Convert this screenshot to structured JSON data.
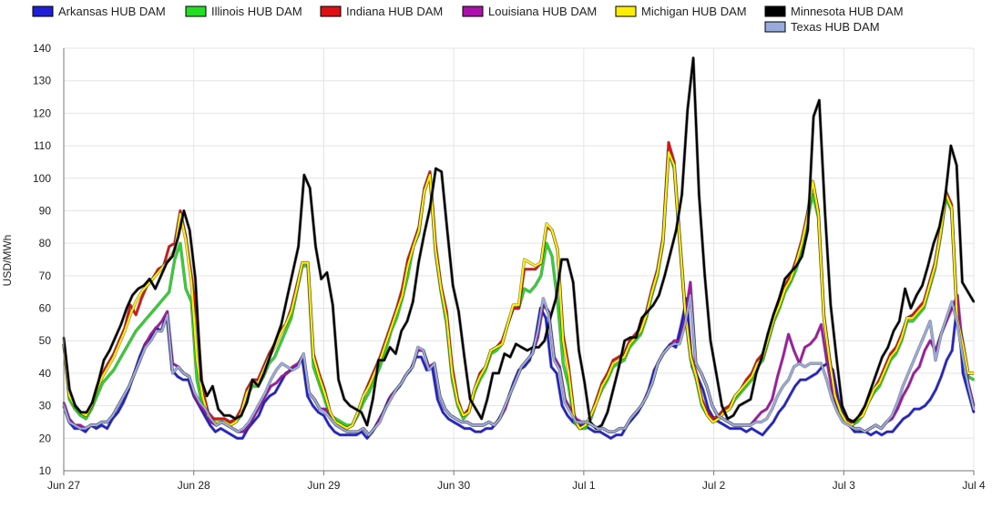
{
  "chart_data": {
    "type": "line",
    "title": "",
    "xlabel": "",
    "ylabel": "USD/MWh",
    "ylim": [
      10,
      140
    ],
    "yticks": [
      10,
      20,
      30,
      40,
      50,
      60,
      70,
      80,
      90,
      100,
      110,
      120,
      130,
      140
    ],
    "xlim": [
      0,
      7
    ],
    "xtick_labels": [
      "Jun 27",
      "Jun 28",
      "Jun 29",
      "Jun 30",
      "Jul 1",
      "Jul 2",
      "Jul 3",
      "Jul 4"
    ],
    "grid": true,
    "legend_position": "top",
    "hours_per_day": 24,
    "series": [
      {
        "name": "Arkansas HUB DAM",
        "color": "#1f1fd6",
        "values": [
          30,
          25,
          23,
          23,
          22,
          24,
          23,
          24,
          23,
          26,
          28,
          31,
          35,
          40,
          45,
          49,
          51,
          54,
          53,
          58,
          41,
          39,
          38,
          38,
          33,
          30,
          27,
          24,
          22,
          23,
          22,
          21,
          20,
          20,
          23,
          25,
          27,
          31,
          33,
          34,
          37,
          40,
          41,
          42,
          45,
          33,
          30,
          28,
          27,
          24,
          22,
          21,
          21,
          21,
          21,
          22,
          20,
          22,
          25,
          28,
          32,
          34,
          36,
          39,
          41,
          45,
          45,
          41,
          42,
          32,
          28,
          26,
          25,
          24,
          23,
          23,
          22,
          22,
          23,
          23,
          25,
          28,
          32,
          37,
          41,
          42,
          44,
          50,
          60,
          57,
          42,
          40,
          30,
          27,
          25,
          24,
          24,
          23,
          22,
          22,
          21,
          20,
          21,
          21,
          24,
          26,
          28,
          31,
          35,
          41,
          44,
          47,
          49,
          48,
          55,
          63,
          42,
          39,
          35,
          29,
          26,
          25,
          24,
          23,
          23,
          23,
          22,
          23,
          22,
          21,
          23,
          25,
          28,
          30,
          33,
          36,
          38,
          38,
          39,
          40,
          42,
          43,
          41,
          32,
          28,
          24,
          22,
          22,
          22,
          21,
          22,
          21,
          22,
          22,
          24,
          26,
          27,
          29,
          29,
          30,
          32,
          35,
          39,
          44,
          47,
          62,
          40,
          34,
          28
        ]
      },
      {
        "name": "Illinois HUB DAM",
        "color": "#22dd22",
        "values": [
          49,
          32,
          29,
          27,
          26,
          29,
          33,
          37,
          39,
          41,
          44,
          47,
          50,
          53,
          55,
          57,
          59,
          61,
          63,
          65,
          75,
          80,
          66,
          62,
          38,
          30,
          27,
          25,
          25,
          25,
          24,
          25,
          27,
          33,
          36,
          36,
          39,
          43,
          45,
          49,
          53,
          57,
          65,
          73,
          73,
          42,
          37,
          32,
          27,
          26,
          25,
          24,
          24,
          27,
          31,
          34,
          38,
          42,
          47,
          53,
          57,
          63,
          70,
          79,
          83,
          96,
          101,
          77,
          65,
          55,
          38,
          30,
          26,
          28,
          34,
          38,
          41,
          46,
          47,
          49,
          55,
          60,
          60,
          66,
          65,
          67,
          70,
          80,
          76,
          62,
          43,
          36,
          25,
          23,
          23,
          26,
          31,
          35,
          38,
          42,
          43,
          44,
          48,
          50,
          52,
          57,
          64,
          70,
          80,
          108,
          103,
          80,
          58,
          44,
          38,
          30,
          27,
          25,
          26,
          28,
          29,
          32,
          34,
          36,
          38,
          42,
          44,
          50,
          56,
          60,
          65,
          68,
          72,
          78,
          87,
          95,
          88,
          57,
          43,
          32,
          27,
          25,
          24,
          25,
          27,
          31,
          34,
          36,
          40,
          44,
          46,
          50,
          56,
          56,
          58,
          60,
          66,
          72,
          82,
          94,
          90,
          57,
          48,
          39,
          38
        ]
      },
      {
        "name": "Indiana HUB DAM",
        "color": "#dd1111",
        "values": [
          49,
          34,
          30,
          28,
          27,
          30,
          36,
          40,
          43,
          46,
          50,
          54,
          61,
          58,
          63,
          67,
          69,
          72,
          73,
          79,
          80,
          90,
          82,
          70,
          57,
          35,
          28,
          26,
          26,
          26,
          25,
          26,
          29,
          35,
          38,
          38,
          42,
          46,
          49,
          53,
          55,
          60,
          67,
          74,
          74,
          46,
          40,
          35,
          28,
          25,
          24,
          23,
          24,
          28,
          33,
          37,
          41,
          45,
          50,
          55,
          60,
          66,
          75,
          80,
          85,
          97,
          102,
          80,
          67,
          59,
          42,
          32,
          27,
          29,
          35,
          40,
          42,
          47,
          48,
          50,
          55,
          60,
          60,
          72,
          72,
          72,
          74,
          85,
          84,
          78,
          52,
          42,
          27,
          23,
          24,
          27,
          32,
          37,
          40,
          44,
          45,
          46,
          50,
          52,
          54,
          59,
          66,
          72,
          82,
          111,
          105,
          82,
          60,
          46,
          40,
          32,
          28,
          26,
          27,
          29,
          30,
          33,
          35,
          38,
          40,
          44,
          46,
          52,
          58,
          62,
          67,
          70,
          75,
          81,
          89,
          99,
          90,
          58,
          45,
          34,
          28,
          26,
          25,
          26,
          28,
          32,
          35,
          38,
          42,
          46,
          48,
          52,
          57,
          58,
          60,
          62,
          68,
          74,
          84,
          96,
          92,
          58,
          50,
          40,
          40
        ]
      },
      {
        "name": "Louisiana HUB DAM",
        "color": "#aa11aa",
        "values": [
          31,
          26,
          24,
          24,
          23,
          24,
          24,
          25,
          25,
          27,
          30,
          33,
          36,
          40,
          44,
          49,
          52,
          54,
          56,
          59,
          43,
          42,
          40,
          39,
          33,
          30,
          28,
          25,
          24,
          25,
          24,
          23,
          22,
          22,
          24,
          27,
          30,
          33,
          36,
          37,
          39,
          40,
          42,
          43,
          45,
          34,
          32,
          29,
          29,
          26,
          24,
          23,
          22,
          22,
          22,
          23,
          21,
          23,
          26,
          29,
          33,
          35,
          37,
          40,
          42,
          47,
          47,
          42,
          43,
          33,
          29,
          27,
          26,
          25,
          25,
          24,
          24,
          24,
          25,
          24,
          26,
          29,
          34,
          38,
          42,
          44,
          46,
          51,
          61,
          59,
          45,
          42,
          32,
          29,
          26,
          25,
          25,
          24,
          23,
          23,
          22,
          22,
          23,
          23,
          26,
          28,
          30,
          33,
          37,
          43,
          46,
          48,
          50,
          50,
          57,
          68,
          43,
          40,
          36,
          30,
          27,
          26,
          25,
          24,
          24,
          24,
          24,
          26,
          28,
          29,
          32,
          39,
          45,
          52,
          47,
          43,
          48,
          49,
          51,
          55,
          44,
          35,
          30,
          27,
          25,
          23,
          23,
          22,
          23,
          24,
          23,
          25,
          26,
          29,
          33,
          36,
          40,
          42,
          47,
          50,
          47,
          52,
          56,
          60,
          64,
          47,
          37,
          30
        ]
      },
      {
        "name": "Michigan HUB DAM",
        "color": "#ffee00",
        "values": [
          49,
          33,
          30,
          28,
          27,
          30,
          35,
          39,
          42,
          45,
          49,
          53,
          58,
          62,
          65,
          67,
          69,
          71,
          73,
          75,
          78,
          89,
          81,
          68,
          44,
          33,
          27,
          25,
          25,
          25,
          24,
          25,
          28,
          34,
          37,
          37,
          41,
          45,
          48,
          52,
          55,
          59,
          66,
          74,
          74,
          45,
          39,
          34,
          28,
          25,
          24,
          23,
          24,
          28,
          33,
          36,
          40,
          44,
          49,
          54,
          59,
          64,
          73,
          79,
          84,
          96,
          101,
          78,
          66,
          57,
          40,
          31,
          27,
          28,
          35,
          39,
          42,
          47,
          48,
          49,
          55,
          61,
          61,
          75,
          74,
          73,
          74,
          86,
          84,
          78,
          50,
          40,
          26,
          23,
          24,
          27,
          31,
          36,
          39,
          43,
          44,
          45,
          49,
          51,
          53,
          58,
          65,
          71,
          81,
          108,
          104,
          81,
          59,
          45,
          39,
          31,
          27,
          25,
          26,
          28,
          29,
          33,
          35,
          37,
          39,
          43,
          45,
          51,
          57,
          61,
          66,
          69,
          74,
          80,
          88,
          99,
          89,
          57,
          44,
          33,
          28,
          25,
          24,
          26,
          27,
          31,
          35,
          37,
          41,
          45,
          47,
          51,
          57,
          57,
          59,
          61,
          67,
          73,
          83,
          95,
          91,
          57,
          49,
          40,
          40
        ]
      },
      {
        "name": "Minnesota HUB DAM",
        "color": "#000000",
        "values": [
          51,
          35,
          30,
          28,
          28,
          31,
          37,
          44,
          47,
          51,
          55,
          60,
          64,
          66,
          67,
          69,
          66,
          70,
          74,
          76,
          82,
          90,
          84,
          69,
          38,
          33,
          36,
          29,
          27,
          27,
          26,
          27,
          31,
          38,
          36,
          40,
          45,
          50,
          55,
          63,
          71,
          79,
          101,
          97,
          79,
          69,
          71,
          61,
          38,
          32,
          30,
          29,
          28,
          24,
          32,
          44,
          44,
          48,
          46,
          53,
          56,
          62,
          74,
          83,
          91,
          103,
          102,
          84,
          67,
          59,
          45,
          32,
          29,
          26,
          32,
          40,
          40,
          46,
          45,
          49,
          48,
          47,
          48,
          48,
          50,
          57,
          63,
          75,
          75,
          68,
          47,
          37,
          25,
          23,
          24,
          28,
          35,
          42,
          50,
          51,
          51,
          57,
          59,
          61,
          64,
          70,
          77,
          84,
          95,
          121,
          137,
          95,
          70,
          50,
          40,
          30,
          26,
          27,
          30,
          31,
          32,
          40,
          45,
          52,
          58,
          63,
          69,
          71,
          73,
          76,
          84,
          119,
          124,
          90,
          61,
          45,
          30,
          26,
          25,
          27,
          30,
          35,
          40,
          45,
          48,
          53,
          56,
          66,
          60,
          64,
          67,
          73,
          80,
          85,
          94,
          110,
          104,
          68,
          65,
          62
        ]
      },
      {
        "name": "Texas HUB DAM",
        "color": "#99aadd",
        "values": [
          30,
          25,
          24,
          23,
          23,
          24,
          24,
          25,
          25,
          27,
          30,
          33,
          36,
          40,
          44,
          48,
          50,
          53,
          53,
          58,
          40,
          42,
          40,
          39,
          34,
          31,
          29,
          26,
          24,
          25,
          24,
          23,
          22,
          23,
          25,
          28,
          31,
          34,
          38,
          41,
          43,
          42,
          41,
          42,
          46,
          34,
          32,
          29,
          28,
          26,
          24,
          23,
          22,
          22,
          22,
          23,
          21,
          23,
          25,
          29,
          32,
          35,
          37,
          40,
          42,
          48,
          47,
          41,
          43,
          33,
          29,
          27,
          26,
          25,
          25,
          24,
          24,
          24,
          25,
          24,
          26,
          30,
          34,
          38,
          42,
          44,
          46,
          53,
          63,
          58,
          44,
          41,
          31,
          28,
          25,
          25,
          25,
          24,
          23,
          23,
          22,
          22,
          23,
          23,
          26,
          28,
          30,
          33,
          37,
          43,
          46,
          48,
          49,
          49,
          55,
          64,
          43,
          40,
          36,
          30,
          27,
          26,
          25,
          24,
          24,
          24,
          24,
          25,
          25,
          26,
          29,
          33,
          36,
          38,
          42,
          43,
          42,
          43,
          43,
          43,
          38,
          32,
          28,
          25,
          24,
          23,
          23,
          22,
          23,
          24,
          23,
          25,
          27,
          31,
          36,
          40,
          44,
          48,
          52,
          56,
          44,
          52,
          57,
          62,
          55,
          45,
          36,
          29
        ]
      }
    ]
  }
}
